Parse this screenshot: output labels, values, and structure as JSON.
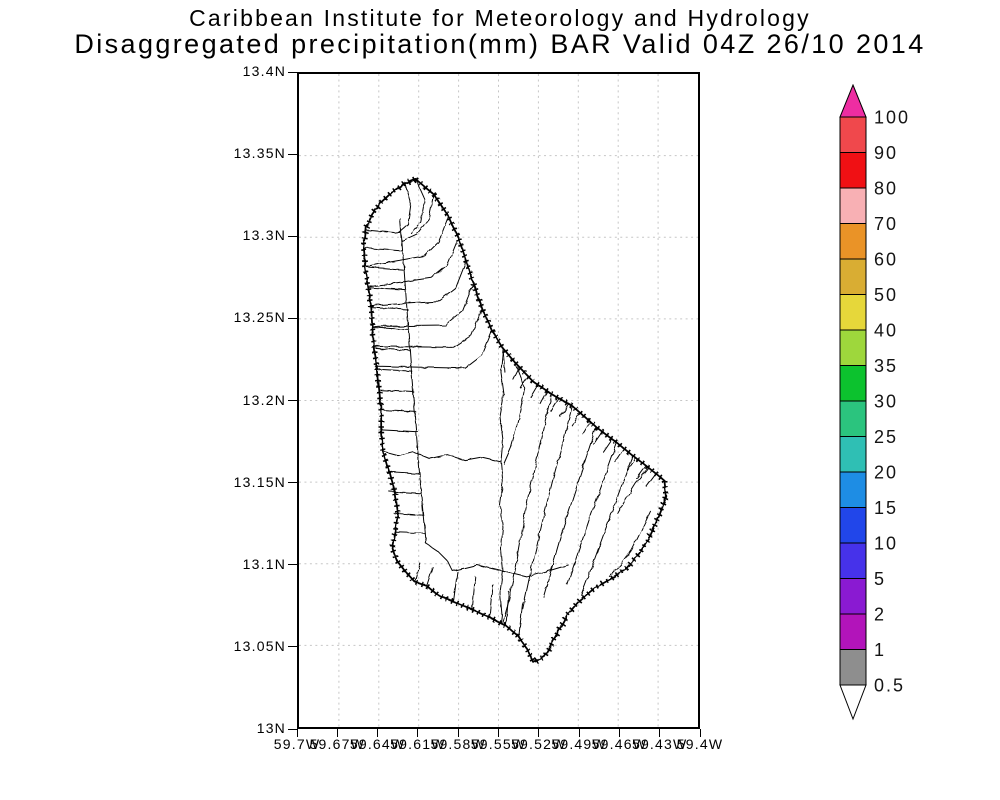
{
  "header": {
    "line1": "Caribbean Institute for Meteorology and Hydrology",
    "line2": "Disaggregated precipitation(mm) BAR Valid 04Z 26/10 2014"
  },
  "map": {
    "region_code": "BAR",
    "y_axis_labels": [
      "13.4N",
      "13.35N",
      "13.3N",
      "13.25N",
      "13.2N",
      "13.15N",
      "13.1N",
      "13.05N",
      "13N"
    ],
    "x_axis_labels": [
      "59.7W",
      "59.67W",
      "59.64W",
      "59.61W",
      "59.58W",
      "59.55W",
      "59.52W",
      "59.49W",
      "59.46W",
      "59.43W",
      "59.4W"
    ],
    "grid_color": "#c6c6c6",
    "frame_color": "#000000",
    "coastline_color": "#000000"
  },
  "colorbar": {
    "tick_labels": [
      "100",
      "90",
      "80",
      "70",
      "60",
      "50",
      "40",
      "35",
      "30",
      "25",
      "20",
      "15",
      "10",
      "5",
      "2",
      "1",
      "0.5"
    ],
    "segment_colors_top_to_bottom": [
      "#f0484c",
      "#f01014",
      "#f8b0b4",
      "#ea9327",
      "#d9ad33",
      "#e6d73a",
      "#9ed73c",
      "#0cc22e",
      "#2bc47e",
      "#2fbfb4",
      "#1e8de4",
      "#2146ea",
      "#4632ea",
      "#8a1ad2",
      "#b214ba",
      "#8e8e8e"
    ],
    "over_arrow_color": "#ee2da2",
    "under_arrow_color": "#ffffff",
    "label_color": "#141414"
  }
}
